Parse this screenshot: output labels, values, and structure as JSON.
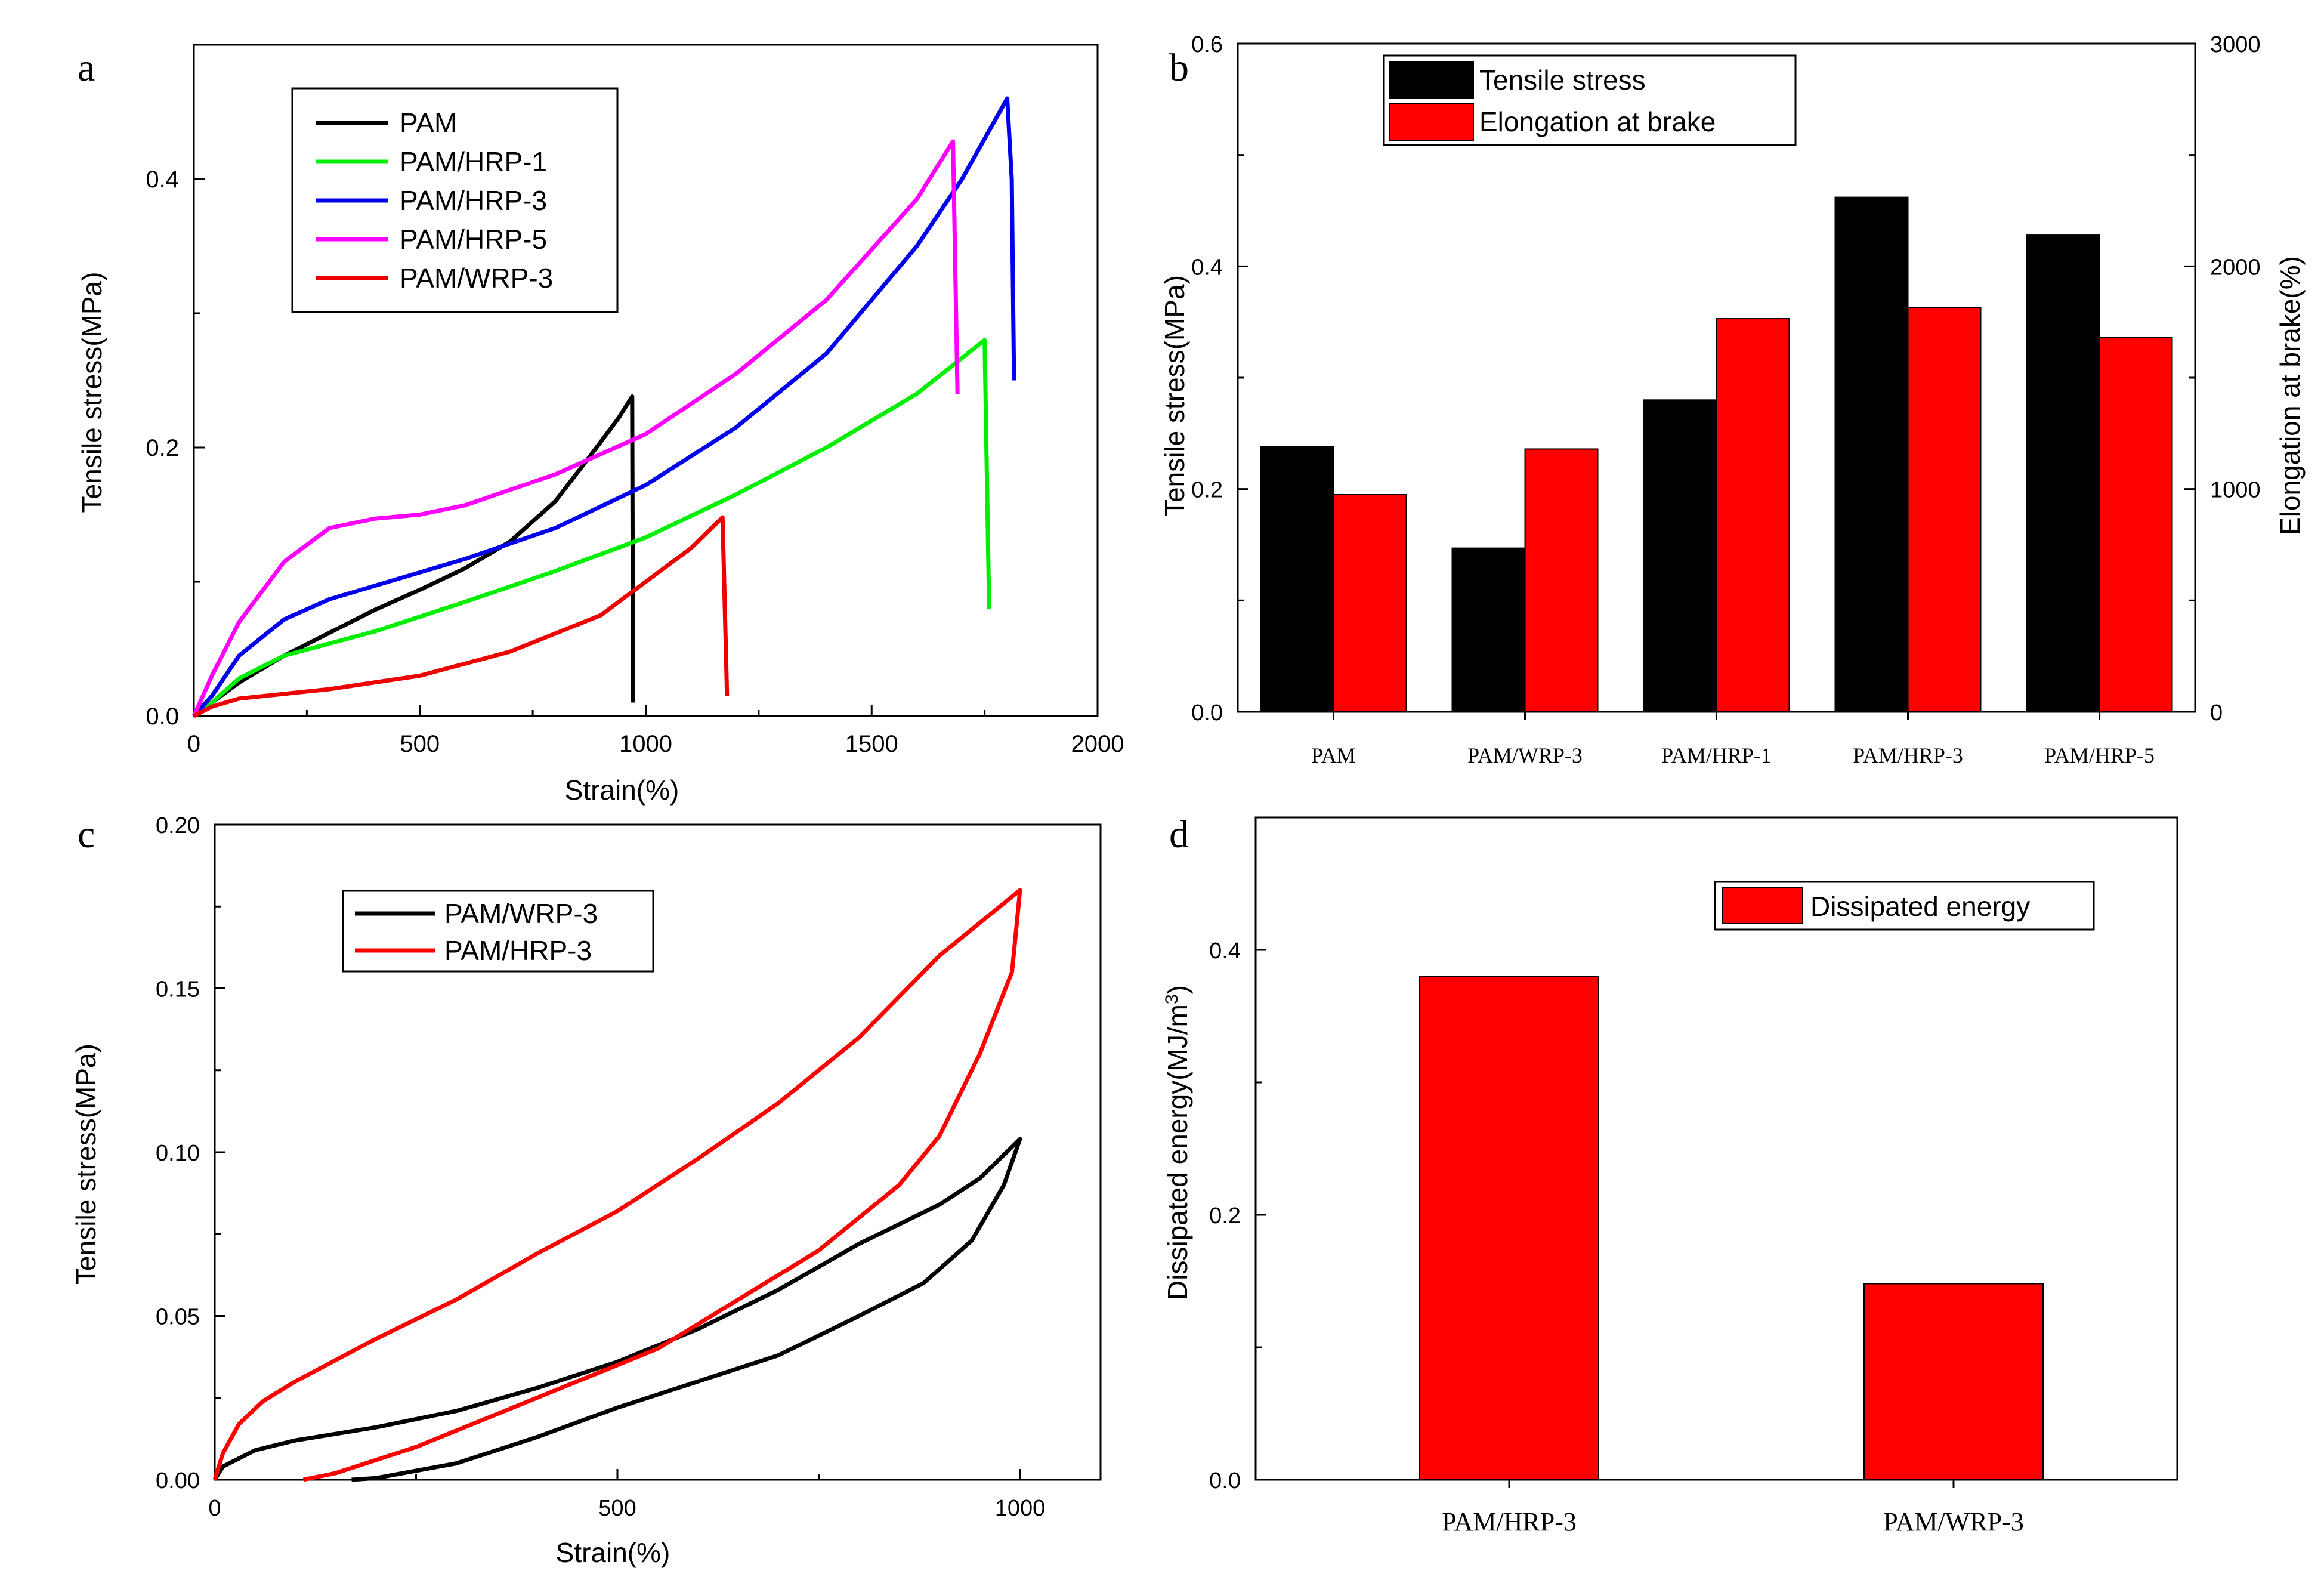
{
  "chart_data": [
    {
      "panel": "a",
      "type": "line",
      "title": "",
      "xlabel": "Strain(%)",
      "ylabel": "Tensile stress(MPa)",
      "xlim": [
        0,
        2000
      ],
      "ylim": [
        0,
        0.5
      ],
      "xticks": [
        "0",
        "500",
        "1000",
        "1500",
        "2000"
      ],
      "yticks": [
        "0.0",
        "0.2",
        "0.4"
      ],
      "ytick_values": [
        0,
        0.2,
        0.4
      ],
      "xtick_values": [
        0,
        500,
        1000,
        1500,
        2000
      ],
      "legend": "top-left",
      "series": [
        {
          "name": "PAM",
          "color": "#000000",
          "points": [
            [
              0,
              0
            ],
            [
              40,
              0.01
            ],
            [
              100,
              0.025
            ],
            [
              200,
              0.045
            ],
            [
              300,
              0.062
            ],
            [
              400,
              0.079
            ],
            [
              500,
              0.094
            ],
            [
              600,
              0.11
            ],
            [
              700,
              0.13
            ],
            [
              800,
              0.16
            ],
            [
              880,
              0.195
            ],
            [
              940,
              0.222
            ],
            [
              970,
              0.238
            ],
            [
              972,
              0.01
            ]
          ]
        },
        {
          "name": "PAM/HRP-1",
          "color": "#00ee00",
          "points": [
            [
              0,
              0
            ],
            [
              40,
              0.01
            ],
            [
              100,
              0.028
            ],
            [
              200,
              0.045
            ],
            [
              400,
              0.063
            ],
            [
              600,
              0.085
            ],
            [
              800,
              0.108
            ],
            [
              1000,
              0.133
            ],
            [
              1200,
              0.165
            ],
            [
              1400,
              0.2
            ],
            [
              1600,
              0.24
            ],
            [
              1750,
              0.28
            ],
            [
              1760,
              0.08
            ]
          ]
        },
        {
          "name": "PAM/HRP-3",
          "color": "#0000ee",
          "points": [
            [
              0,
              0
            ],
            [
              40,
              0.015
            ],
            [
              100,
              0.045
            ],
            [
              200,
              0.072
            ],
            [
              300,
              0.087
            ],
            [
              400,
              0.097
            ],
            [
              500,
              0.107
            ],
            [
              600,
              0.117
            ],
            [
              800,
              0.14
            ],
            [
              1000,
              0.172
            ],
            [
              1200,
              0.215
            ],
            [
              1400,
              0.27
            ],
            [
              1600,
              0.35
            ],
            [
              1700,
              0.4
            ],
            [
              1800,
              0.46
            ],
            [
              1810,
              0.4
            ],
            [
              1815,
              0.25
            ]
          ]
        },
        {
          "name": "PAM/HRP-5",
          "color": "#ff00ff",
          "points": [
            [
              0,
              0
            ],
            [
              40,
              0.03
            ],
            [
              100,
              0.07
            ],
            [
              200,
              0.115
            ],
            [
              300,
              0.14
            ],
            [
              400,
              0.147
            ],
            [
              500,
              0.15
            ],
            [
              600,
              0.157
            ],
            [
              800,
              0.18
            ],
            [
              1000,
              0.21
            ],
            [
              1200,
              0.255
            ],
            [
              1400,
              0.31
            ],
            [
              1600,
              0.385
            ],
            [
              1680,
              0.428
            ],
            [
              1690,
              0.24
            ]
          ]
        },
        {
          "name": "PAM/WRP-3",
          "color": "#ee0000",
          "points": [
            [
              0,
              0
            ],
            [
              40,
              0.007
            ],
            [
              100,
              0.013
            ],
            [
              300,
              0.02
            ],
            [
              500,
              0.03
            ],
            [
              700,
              0.048
            ],
            [
              900,
              0.075
            ],
            [
              1000,
              0.1
            ],
            [
              1100,
              0.125
            ],
            [
              1170,
              0.148
            ],
            [
              1180,
              0.015
            ]
          ]
        }
      ]
    },
    {
      "panel": "b",
      "type": "bar",
      "title": "",
      "categories": [
        "PAM",
        "PAM/WRP-3",
        "PAM/HRP-1",
        "PAM/HRP-3",
        "PAM/HRP-5"
      ],
      "ylabel": "Tensile stress(MPa)",
      "y2label": "Elongation at brake(%)",
      "ylim": [
        0,
        0.6
      ],
      "y2lim": [
        0,
        3000
      ],
      "yticks": [
        "0.0",
        "0.2",
        "0.4",
        "0.6"
      ],
      "ytick_values": [
        0,
        0.2,
        0.4,
        0.6
      ],
      "y2ticks": [
        "0",
        "1000",
        "2000",
        "3000"
      ],
      "y2tick_values": [
        0,
        1000,
        2000,
        3000
      ],
      "legend": "top-left",
      "series": [
        {
          "name": "Tensile stress",
          "color": "#000000",
          "axis": "left",
          "values": [
            0.238,
            0.147,
            0.28,
            0.462,
            0.428
          ]
        },
        {
          "name": "Elongation at brake",
          "color": "#ff0000",
          "axis": "right",
          "values": [
            975,
            1180,
            1765,
            1815,
            1680
          ]
        }
      ]
    },
    {
      "panel": "c",
      "type": "line",
      "title": "",
      "xlabel": "Strain(%)",
      "ylabel": "Tensile stress(MPa)",
      "xlim": [
        0,
        1100
      ],
      "ylim": [
        0,
        0.2
      ],
      "xticks": [
        "0",
        "500",
        "1000"
      ],
      "xtick_values": [
        0,
        500,
        1000
      ],
      "yticks": [
        "0.00",
        "0.05",
        "0.10",
        "0.15",
        "0.20"
      ],
      "ytick_values": [
        0,
        0.05,
        0.1,
        0.15,
        0.2
      ],
      "legend": "top-left",
      "series": [
        {
          "name": "PAM/WRP-3",
          "color": "#000000",
          "points": [
            [
              0,
              0
            ],
            [
              10,
              0.004
            ],
            [
              50,
              0.009
            ],
            [
              100,
              0.012
            ],
            [
              200,
              0.016
            ],
            [
              300,
              0.021
            ],
            [
              400,
              0.028
            ],
            [
              500,
              0.036
            ],
            [
              600,
              0.046
            ],
            [
              700,
              0.058
            ],
            [
              800,
              0.072
            ],
            [
              900,
              0.084
            ],
            [
              950,
              0.092
            ],
            [
              1000,
              0.104
            ],
            [
              980,
              0.09
            ],
            [
              940,
              0.073
            ],
            [
              880,
              0.06
            ],
            [
              800,
              0.05
            ],
            [
              700,
              0.038
            ],
            [
              600,
              0.03
            ],
            [
              500,
              0.022
            ],
            [
              400,
              0.013
            ],
            [
              300,
              0.005
            ],
            [
              200,
              0.0005
            ],
            [
              170,
              0
            ]
          ]
        },
        {
          "name": "PAM/HRP-3",
          "color": "#ff0000",
          "points": [
            [
              0,
              0
            ],
            [
              10,
              0.008
            ],
            [
              30,
              0.017
            ],
            [
              60,
              0.024
            ],
            [
              100,
              0.03
            ],
            [
              200,
              0.043
            ],
            [
              300,
              0.055
            ],
            [
              400,
              0.069
            ],
            [
              500,
              0.082
            ],
            [
              600,
              0.098
            ],
            [
              700,
              0.115
            ],
            [
              800,
              0.135
            ],
            [
              900,
              0.16
            ],
            [
              950,
              0.17
            ],
            [
              990,
              0.178
            ],
            [
              1000,
              0.18
            ],
            [
              990,
              0.155
            ],
            [
              950,
              0.13
            ],
            [
              900,
              0.105
            ],
            [
              850,
              0.09
            ],
            [
              750,
              0.07
            ],
            [
              650,
              0.055
            ],
            [
              550,
              0.04
            ],
            [
              450,
              0.03
            ],
            [
              350,
              0.02
            ],
            [
              250,
              0.01
            ],
            [
              150,
              0.002
            ],
            [
              110,
              0
            ]
          ]
        }
      ]
    },
    {
      "panel": "d",
      "type": "bar",
      "title": "",
      "categories": [
        "PAM/HRP-3",
        "PAM/WRP-3"
      ],
      "ylabel": "Dissipated energy(MJ/m",
      "ylabel_sup": "3",
      "ylabel_end": ")",
      "ylim": [
        0,
        0.5
      ],
      "yticks": [
        "0.0",
        "0.2",
        "0.4"
      ],
      "ytick_values": [
        0,
        0.2,
        0.4
      ],
      "legend": "top-right",
      "series": [
        {
          "name": "Dissipated energy",
          "color": "#ff0000",
          "values": [
            0.38,
            0.148
          ]
        }
      ]
    }
  ],
  "panel_labels": [
    "a",
    "b",
    "c",
    "d"
  ]
}
